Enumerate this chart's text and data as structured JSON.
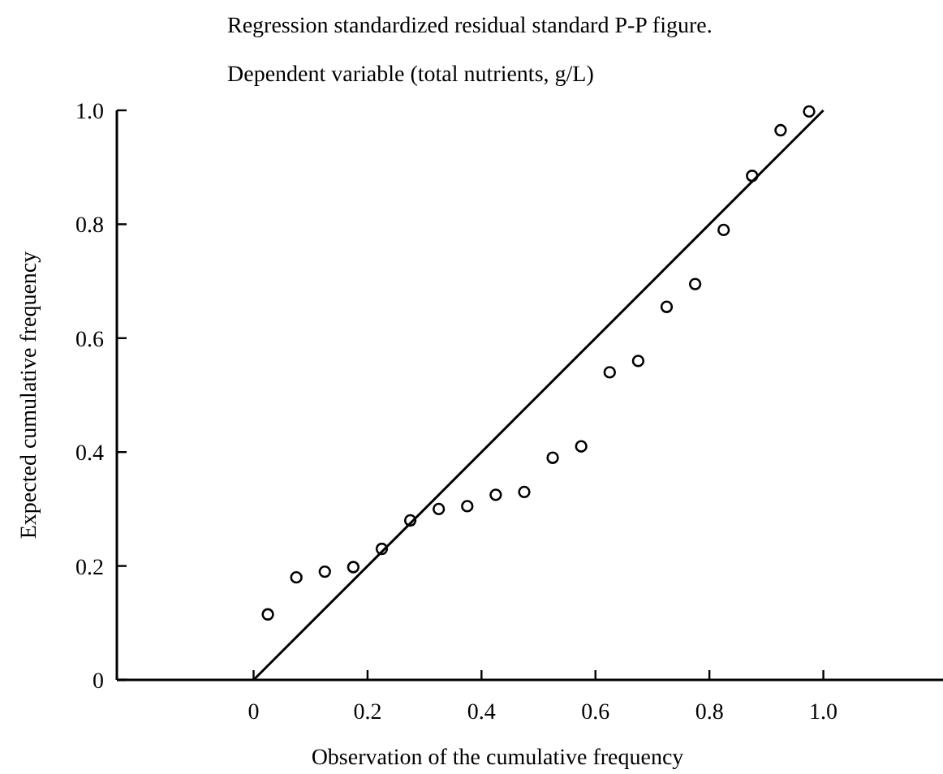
{
  "chart_data": {
    "type": "scatter",
    "title": "Regression standardized residual standard P-P figure.",
    "subtitle": "Dependent variable (total nutrients, g/L)",
    "xlabel": "Observation of the cumulative frequency",
    "ylabel": "Expected cumulative frequency",
    "xlim": [
      -0.24,
      1.21
    ],
    "ylim": [
      0,
      1
    ],
    "xticks": [
      0,
      0.2,
      0.4,
      0.6,
      0.8,
      {
        "value": 1,
        "label": "1.0"
      }
    ],
    "yticks": [
      0,
      0.2,
      0.4,
      0.6,
      0.8,
      {
        "value": 1,
        "label": "1.0"
      }
    ],
    "grid": false,
    "series": [
      {
        "color": "#000000",
        "marker": "circle",
        "x": [
          0.025,
          0.075,
          0.125,
          0.175,
          0.225,
          0.275,
          0.325,
          0.375,
          0.425,
          0.475,
          0.525,
          0.575,
          0.625,
          0.675,
          0.725,
          0.775,
          0.825,
          0.875,
          0.925,
          0.975
        ],
        "values": [
          0.115,
          0.18,
          0.19,
          0.198,
          0.23,
          0.28,
          0.3,
          0.305,
          0.325,
          0.33,
          0.39,
          0.41,
          0.54,
          0.56,
          0.655,
          0.695,
          0.79,
          0.885,
          0.965,
          0.998
        ]
      },
      {
        "type": "line",
        "color": "#000000",
        "line_style": "solid",
        "marker": "none",
        "x": [
          0,
          1
        ],
        "values": [
          0,
          1
        ]
      }
    ]
  }
}
